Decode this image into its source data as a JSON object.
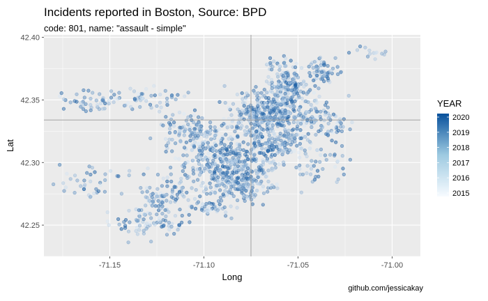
{
  "title": "Incidents reported in Boston, Source: BPD",
  "subtitle": "code: 801, name: \"assault - simple\"",
  "caption": "github.com/jessicakay",
  "colors": {
    "panel_bg": "#ebebeb",
    "grid_major": "#ffffff",
    "point_low": "#deebf7",
    "point_high": "#08519c",
    "crosshair": "#999999"
  },
  "chart_data": {
    "type": "scatter",
    "title": "Incidents reported in Boston, Source: BPD",
    "subtitle": "code: 801, name: \"assault - simple\"",
    "xlabel": "Long",
    "ylabel": "Lat",
    "xlim": [
      -71.185,
      -70.985
    ],
    "ylim": [
      42.225,
      42.402
    ],
    "xticks": [
      -71.15,
      -71.1,
      -71.05,
      -71.0
    ],
    "xtick_labels": [
      "-71.15",
      "-71.10",
      "-71.05",
      "-71.00"
    ],
    "yticks": [
      42.25,
      42.3,
      42.35,
      42.4
    ],
    "ytick_labels": [
      "42.25",
      "42.30",
      "42.35",
      "42.40"
    ],
    "grid": true,
    "crosshair": {
      "x": -71.075,
      "y": 42.334
    },
    "color_scale": {
      "variable": "YEAR",
      "min": 2015,
      "max": 2020,
      "labels": [
        "2020",
        "2019",
        "2018",
        "2017",
        "2016",
        "2015"
      ]
    },
    "legend_placement": "right",
    "clusters": [
      {
        "x": -71.07,
        "y": 42.335,
        "sx": 0.01,
        "sy": 0.01,
        "n": 220
      },
      {
        "x": -71.06,
        "y": 42.32,
        "sx": 0.01,
        "sy": 0.014,
        "n": 200
      },
      {
        "x": -71.085,
        "y": 42.3,
        "sx": 0.011,
        "sy": 0.01,
        "n": 220
      },
      {
        "x": -71.082,
        "y": 42.283,
        "sx": 0.008,
        "sy": 0.007,
        "n": 160
      },
      {
        "x": -71.1,
        "y": 42.31,
        "sx": 0.009,
        "sy": 0.012,
        "n": 130
      },
      {
        "x": -71.06,
        "y": 42.345,
        "sx": 0.008,
        "sy": 0.008,
        "n": 120
      },
      {
        "x": -71.055,
        "y": 42.362,
        "sx": 0.005,
        "sy": 0.006,
        "n": 110
      },
      {
        "x": -71.04,
        "y": 42.338,
        "sx": 0.007,
        "sy": 0.008,
        "n": 70
      },
      {
        "x": -71.037,
        "y": 42.374,
        "sx": 0.004,
        "sy": 0.005,
        "n": 60
      },
      {
        "x": -71.06,
        "y": 42.379,
        "sx": 0.004,
        "sy": 0.003,
        "n": 25
      },
      {
        "x": -71.01,
        "y": 42.387,
        "sx": 0.006,
        "sy": 0.003,
        "n": 14
      },
      {
        "x": -71.16,
        "y": 42.35,
        "sx": 0.009,
        "sy": 0.004,
        "n": 50
      },
      {
        "x": -71.13,
        "y": 42.352,
        "sx": 0.008,
        "sy": 0.005,
        "n": 40
      },
      {
        "x": -71.12,
        "y": 42.27,
        "sx": 0.012,
        "sy": 0.01,
        "n": 110
      },
      {
        "x": -71.13,
        "y": 42.25,
        "sx": 0.01,
        "sy": 0.007,
        "n": 60
      },
      {
        "x": -71.16,
        "y": 42.283,
        "sx": 0.01,
        "sy": 0.007,
        "n": 40
      },
      {
        "x": -71.11,
        "y": 42.328,
        "sx": 0.008,
        "sy": 0.006,
        "n": 60
      },
      {
        "x": -71.04,
        "y": 42.3,
        "sx": 0.008,
        "sy": 0.009,
        "n": 40
      },
      {
        "x": -71.03,
        "y": 42.33,
        "sx": 0.005,
        "sy": 0.005,
        "n": 20
      },
      {
        "x": -71.095,
        "y": 42.265,
        "sx": 0.006,
        "sy": 0.004,
        "n": 40
      }
    ]
  }
}
